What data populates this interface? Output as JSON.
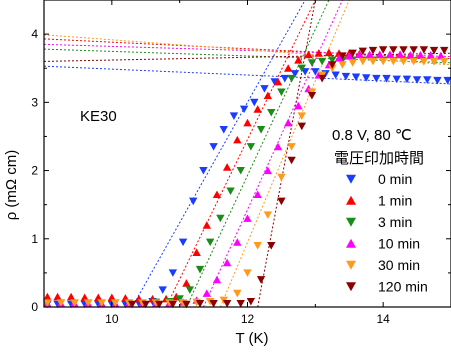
{
  "chart_data": {
    "type": "scatter",
    "xlabel": "T (K)",
    "ylabel": "ρ (mΩ cm)",
    "xlim": [
      9,
      15
    ],
    "ylim": [
      0,
      4.5
    ],
    "xticks": [
      "10",
      "12",
      "14"
    ],
    "yticks": [
      "0",
      "1",
      "2",
      "3",
      "4"
    ],
    "sample_label": "KE30",
    "legend_title_line1": "0.8 V, 80 ℃",
    "legend_title_line2": "電圧印加時間",
    "legend_position": "right",
    "grid": false,
    "fit_lines": true,
    "series": [
      {
        "name": "0 min",
        "color": "#1a3cff",
        "marker": "triangle-down",
        "x": [
          9.05,
          9.2,
          9.4,
          9.6,
          9.8,
          10.0,
          10.2,
          10.4,
          10.6,
          10.75,
          10.9,
          11.05,
          11.2,
          11.35,
          11.5,
          11.65,
          11.8,
          11.95,
          12.1,
          12.25,
          12.4,
          12.55,
          12.7,
          12.85,
          13.0,
          13.15,
          13.3,
          13.45,
          13.6,
          13.75,
          13.9,
          14.05,
          14.2,
          14.35,
          14.5,
          14.65,
          14.8,
          14.95
        ],
        "y": [
          0.04,
          0.04,
          0.04,
          0.04,
          0.04,
          0.04,
          0.04,
          0.05,
          0.08,
          0.25,
          0.5,
          0.95,
          1.55,
          2.0,
          2.35,
          2.6,
          2.8,
          2.9,
          3.0,
          3.2,
          3.3,
          3.35,
          3.42,
          3.45,
          3.45,
          3.42,
          3.4,
          3.38,
          3.37,
          3.36,
          3.35,
          3.35,
          3.34,
          3.34,
          3.33,
          3.33,
          3.32,
          3.32
        ]
      },
      {
        "name": "1 min",
        "color": "#ff0000",
        "marker": "triangle-up",
        "x": [
          9.05,
          9.2,
          9.4,
          9.6,
          9.8,
          10.0,
          10.2,
          10.4,
          10.6,
          10.8,
          10.95,
          11.1,
          11.25,
          11.4,
          11.55,
          11.7,
          11.85,
          12.0,
          12.15,
          12.3,
          12.45,
          12.6,
          12.75,
          12.9,
          13.05,
          13.2,
          13.35,
          13.5,
          13.65,
          13.8,
          13.95,
          14.1,
          14.25,
          14.4,
          14.55,
          14.7,
          14.85
        ],
        "y": [
          0.15,
          0.15,
          0.15,
          0.14,
          0.14,
          0.14,
          0.13,
          0.12,
          0.12,
          0.12,
          0.15,
          0.35,
          0.8,
          1.2,
          1.65,
          2.05,
          2.45,
          2.7,
          2.9,
          3.1,
          3.3,
          3.5,
          3.62,
          3.7,
          3.72,
          3.73,
          3.72,
          3.72,
          3.71,
          3.7,
          3.7,
          3.7,
          3.7,
          3.69,
          3.69,
          3.69,
          3.68
        ]
      },
      {
        "name": "3 min",
        "color": "#1a8c1a",
        "marker": "triangle-down",
        "x": [
          9.05,
          9.25,
          9.45,
          9.65,
          9.85,
          10.05,
          10.25,
          10.45,
          10.65,
          10.85,
          11.0,
          11.15,
          11.3,
          11.45,
          11.6,
          11.75,
          11.9,
          12.05,
          12.2,
          12.35,
          12.5,
          12.65,
          12.8,
          12.95,
          13.1,
          13.25,
          13.4,
          13.55,
          13.7,
          13.85,
          14.0,
          14.15,
          14.3,
          14.45,
          14.6,
          14.75,
          14.9
        ],
        "y": [
          0.06,
          0.06,
          0.06,
          0.06,
          0.06,
          0.06,
          0.06,
          0.06,
          0.07,
          0.08,
          0.12,
          0.25,
          0.55,
          0.95,
          1.3,
          1.7,
          2.0,
          2.35,
          2.6,
          2.85,
          3.15,
          3.35,
          3.5,
          3.58,
          3.6,
          3.62,
          3.62,
          3.62,
          3.62,
          3.62,
          3.62,
          3.61,
          3.61,
          3.61,
          3.6,
          3.6,
          3.6
        ]
      },
      {
        "name": "10 min",
        "color": "#ff00ff",
        "marker": "triangle-up",
        "x": [
          9.05,
          9.25,
          9.45,
          9.65,
          9.85,
          10.05,
          10.25,
          10.45,
          10.65,
          10.85,
          11.05,
          11.25,
          11.4,
          11.55,
          11.7,
          11.85,
          12.0,
          12.15,
          12.3,
          12.45,
          12.6,
          12.75,
          12.9,
          13.05,
          13.2,
          13.35,
          13.5,
          13.65,
          13.8,
          13.95,
          14.1,
          14.25,
          14.4,
          14.55,
          14.7,
          14.85
        ],
        "y": [
          0.05,
          0.05,
          0.05,
          0.05,
          0.05,
          0.05,
          0.05,
          0.05,
          0.05,
          0.06,
          0.07,
          0.1,
          0.2,
          0.4,
          0.65,
          0.95,
          1.3,
          1.65,
          2.0,
          2.35,
          2.7,
          2.95,
          3.2,
          3.4,
          3.55,
          3.65,
          3.68,
          3.7,
          3.7,
          3.7,
          3.7,
          3.7,
          3.69,
          3.69,
          3.69,
          3.68
        ]
      },
      {
        "name": "30 min",
        "color": "#ff9a1a",
        "marker": "triangle-down",
        "x": [
          9.05,
          9.25,
          9.45,
          9.65,
          9.85,
          10.05,
          10.25,
          10.45,
          10.65,
          10.85,
          11.05,
          11.25,
          11.45,
          11.65,
          11.85,
          12.0,
          12.15,
          12.3,
          12.5,
          12.65,
          12.8,
          12.95,
          13.1,
          13.25,
          13.4,
          13.55,
          13.7,
          13.85,
          14.0,
          14.15,
          14.3,
          14.45,
          14.6,
          14.75,
          14.9
        ],
        "y": [
          0.06,
          0.06,
          0.06,
          0.06,
          0.06,
          0.06,
          0.06,
          0.06,
          0.06,
          0.06,
          0.06,
          0.07,
          0.08,
          0.1,
          0.2,
          0.5,
          0.9,
          1.35,
          1.9,
          2.35,
          2.8,
          3.15,
          3.4,
          3.5,
          3.55,
          3.58,
          3.6,
          3.6,
          3.6,
          3.6,
          3.6,
          3.6,
          3.6,
          3.6,
          3.6
        ]
      },
      {
        "name": "120 min",
        "color": "#8b0000",
        "marker": "triangle-down",
        "x": [
          10.3,
          10.5,
          10.7,
          10.9,
          11.1,
          11.3,
          11.5,
          11.7,
          11.9,
          12.05,
          12.2,
          12.35,
          12.5,
          12.65,
          12.8,
          12.95,
          13.1,
          13.25,
          13.4,
          13.55,
          13.7,
          13.85,
          14.0,
          14.15,
          14.3,
          14.45,
          14.6,
          14.75,
          14.9
        ],
        "y": [
          0.04,
          0.04,
          0.04,
          0.04,
          0.04,
          0.05,
          0.05,
          0.05,
          0.05,
          0.08,
          0.4,
          0.9,
          1.55,
          2.15,
          2.65,
          3.1,
          3.35,
          3.55,
          3.68,
          3.72,
          3.75,
          3.76,
          3.77,
          3.77,
          3.77,
          3.77,
          3.77,
          3.76,
          3.76
        ]
      }
    ],
    "fits": [
      {
        "series": "0 min",
        "color": "#1a3cff",
        "steep": [
          [
            10.3,
            0
          ],
          [
            12.85,
            4.5
          ]
        ],
        "flat": [
          [
            9.0,
            3.53
          ],
          [
            15.0,
            3.27
          ]
        ]
      },
      {
        "series": "1 min",
        "color": "#ff0000",
        "steep": [
          [
            10.8,
            0
          ],
          [
            13.0,
            4.5
          ]
        ],
        "flat": [
          [
            9.0,
            3.93
          ],
          [
            15.0,
            3.64
          ]
        ]
      },
      {
        "series": "3 min",
        "color": "#1a8c1a",
        "steep": [
          [
            11.1,
            0
          ],
          [
            13.2,
            4.5
          ]
        ],
        "flat": [
          [
            9.0,
            3.78
          ],
          [
            15.0,
            3.58
          ]
        ]
      },
      {
        "series": "10 min",
        "color": "#ff00ff",
        "steep": [
          [
            11.35,
            0
          ],
          [
            13.4,
            4.5
          ]
        ],
        "flat": [
          [
            9.0,
            3.85
          ],
          [
            15.0,
            3.67
          ]
        ]
      },
      {
        "series": "30 min",
        "color": "#ff9a1a",
        "steep": [
          [
            11.6,
            0
          ],
          [
            13.5,
            4.5
          ]
        ],
        "flat": [
          [
            9.0,
            3.99
          ],
          [
            15.0,
            3.55
          ]
        ]
      },
      {
        "series": "120 min",
        "color": "#8b0000",
        "steep": [
          [
            12.15,
            0
          ],
          [
            13.0,
            4.5
          ]
        ],
        "flat": [
          [
            9.0,
            3.6
          ],
          [
            15.0,
            3.72
          ]
        ]
      }
    ]
  }
}
